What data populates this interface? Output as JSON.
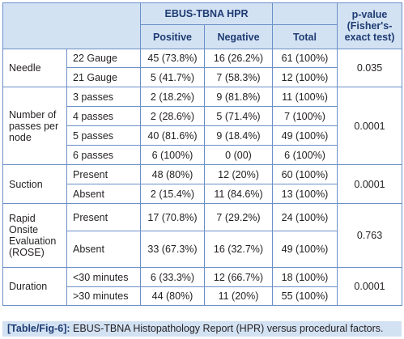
{
  "header": {
    "group": "EBUS-TBNA HPR",
    "positive": "Positive",
    "negative": "Negative",
    "total": "Total",
    "pvalue": "p-value (Fisher's-exact test)"
  },
  "groups": [
    {
      "factor": "Needle",
      "pvalue": "0.035",
      "rows": [
        {
          "level": "22 Gauge",
          "positive": "45 (73.8%)",
          "negative": "16 (26.2%)",
          "total": "61 (100%)"
        },
        {
          "level": "21 Gauge",
          "positive": "5 (41.7%)",
          "negative": "7 (58.3%)",
          "total": "12 (100%)"
        }
      ]
    },
    {
      "factor": "Number of passes per node",
      "pvalue": "0.0001",
      "rows": [
        {
          "level": "3 passes",
          "positive": "2 (18.2%)",
          "negative": "9 (81.8%)",
          "total": "11 (100%)"
        },
        {
          "level": "4 passes",
          "positive": "2 (28.6%)",
          "negative": "5 (71.4%)",
          "total": "7 (100%)"
        },
        {
          "level": "5 passes",
          "positive": "40 (81.6%)",
          "negative": "9 (18.4%)",
          "total": "49 (100%)"
        },
        {
          "level": "6 passes",
          "positive": "6 (100%)",
          "negative": "0 (00)",
          "total": "6 (100%)"
        }
      ]
    },
    {
      "factor": "Suction",
      "pvalue": "0.0001",
      "rows": [
        {
          "level": "Present",
          "positive": "48 (80%)",
          "negative": "12 (20%)",
          "total": "60 (100%)"
        },
        {
          "level": "Absent",
          "positive": "2 (15.4%)",
          "negative": "11 (84.6%)",
          "total": "13 (100%)"
        }
      ]
    },
    {
      "factor": "Rapid Onsite Evaluation (ROSE)",
      "pvalue": "0.763",
      "rows": [
        {
          "level": "Present",
          "positive": "17 (70.8%)",
          "negative": "7 (29.2%)",
          "total": "24 (100%)"
        },
        {
          "level": "Absent",
          "positive": "33 (67.3%)",
          "negative": "16 (32.7%)",
          "total": "49 (100%)"
        }
      ]
    },
    {
      "factor": "Duration",
      "pvalue": "0.0001",
      "rows": [
        {
          "level": "<30 minutes",
          "positive": "6 (33.3%)",
          "negative": "12 (66.7%)",
          "total": "18 (100%)"
        },
        {
          "level": ">30 minutes",
          "positive": "44 (80%)",
          "negative": "11 (20%)",
          "total": "55 (100%)"
        }
      ]
    }
  ],
  "caption": {
    "label": "[Table/Fig-6]:",
    "text": "EBUS-TBNA Histopathology Report (HPR) versus procedural factors."
  }
}
